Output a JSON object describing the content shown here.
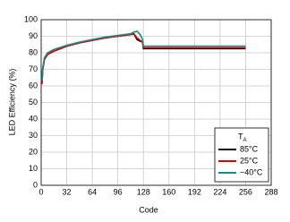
{
  "chart_data": {
    "type": "line",
    "xlabel": "Code",
    "ylabel": "LED Efficiency (%)",
    "x": [
      1,
      2,
      4,
      8,
      16,
      32,
      48,
      64,
      80,
      96,
      112,
      116,
      120,
      124,
      127,
      128,
      160,
      192,
      224,
      256
    ],
    "series": [
      {
        "name": "85°C",
        "color": "#000000",
        "values": [
          62,
          70,
          76,
          79,
          81,
          84,
          86,
          87.5,
          89,
          90,
          91,
          91.5,
          88,
          87,
          86.5,
          82.5,
          82.5,
          82.5,
          82.5,
          82.5
        ]
      },
      {
        "name": "25°C",
        "color": "#e00000",
        "values": [
          61,
          70,
          76,
          79,
          81,
          84,
          86,
          87.5,
          89,
          90,
          91,
          91.5,
          89,
          87.5,
          86.5,
          83,
          83,
          83,
          83,
          83
        ]
      },
      {
        "name": "−40°C",
        "color": "#1a8a8a",
        "values": [
          63,
          71,
          77,
          80,
          82,
          84.5,
          86.5,
          88,
          89.5,
          90.5,
          91.5,
          92.5,
          93,
          91,
          88,
          84,
          84,
          84,
          84,
          84
        ]
      }
    ],
    "legend_title": "T",
    "legend_title_sub": "A",
    "legend": "lower right",
    "xlim": [
      0,
      288
    ],
    "xticks": [
      0,
      32,
      64,
      96,
      128,
      160,
      192,
      224,
      256,
      288
    ],
    "ylim": [
      0,
      100
    ],
    "yticks": [
      0,
      10,
      20,
      30,
      40,
      50,
      60,
      70,
      80,
      90,
      100
    ],
    "grid": true
  }
}
